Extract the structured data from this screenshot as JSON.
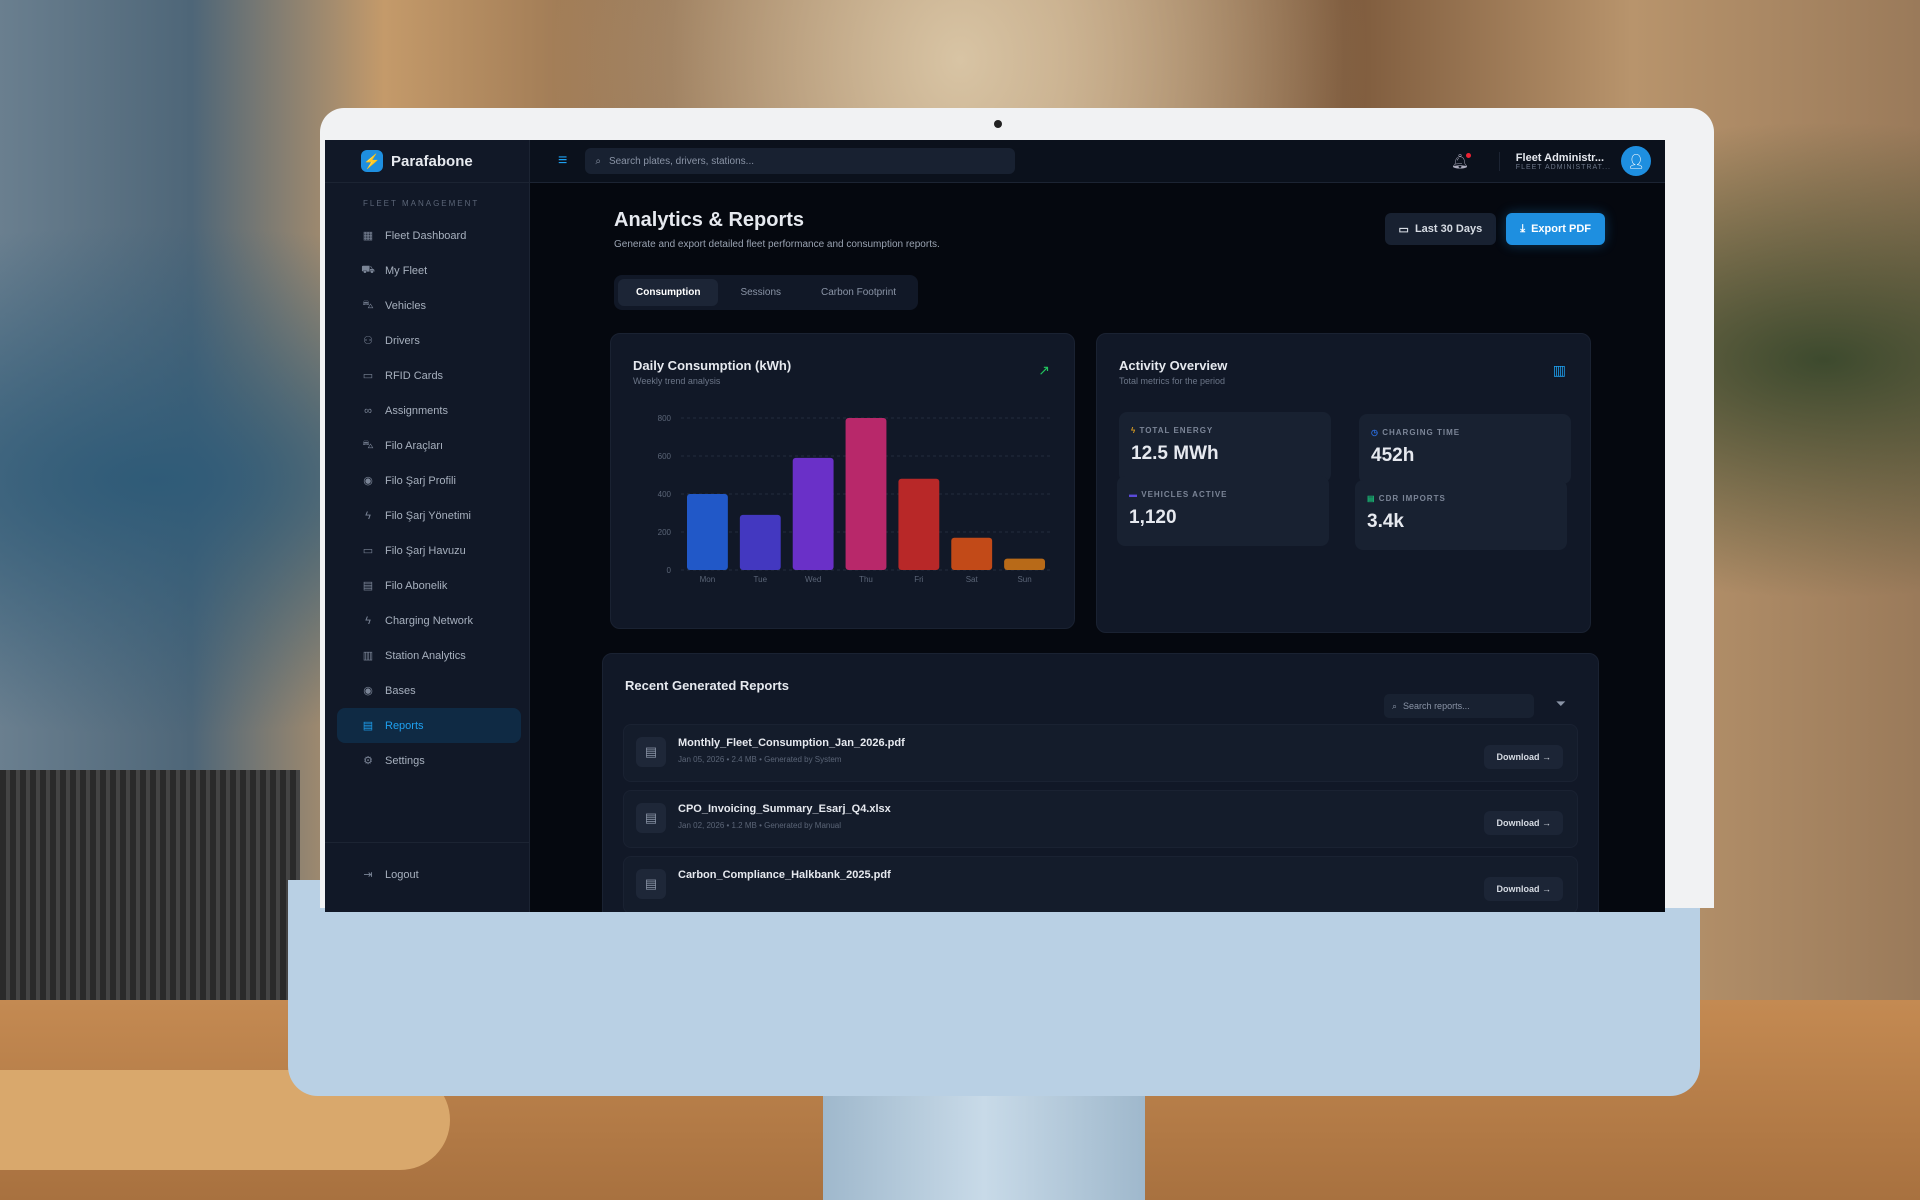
{
  "app": {
    "name": "Parafabone",
    "logo_icon": "bolt-icon"
  },
  "search": {
    "placeholder": "Search plates, drivers, stations..."
  },
  "user": {
    "name": "Fleet Administr...",
    "role": "FLEET ADMINISTRAT..."
  },
  "sidebar": {
    "section": "FLEET MANAGEMENT",
    "items": [
      {
        "label": "Fleet Dashboard",
        "icon": "grid-icon"
      },
      {
        "label": "My Fleet",
        "icon": "truck-icon"
      },
      {
        "label": "Vehicles",
        "icon": "car-icon"
      },
      {
        "label": "Drivers",
        "icon": "users-icon"
      },
      {
        "label": "RFID Cards",
        "icon": "card-icon"
      },
      {
        "label": "Assignments",
        "icon": "link-icon"
      },
      {
        "label": "Filo Araçları",
        "icon": "car-icon"
      },
      {
        "label": "Filo Şarj Profili",
        "icon": "pin-icon"
      },
      {
        "label": "Filo Şarj Yönetimi",
        "icon": "bolt-icon"
      },
      {
        "label": "Filo Şarj Havuzu",
        "icon": "battery-icon"
      },
      {
        "label": "Filo Abonelik",
        "icon": "file-icon"
      },
      {
        "label": "Charging Network",
        "icon": "bolt-icon"
      },
      {
        "label": "Station Analytics",
        "icon": "bar-chart-icon"
      },
      {
        "label": "Bases",
        "icon": "pin-icon"
      },
      {
        "label": "Reports",
        "icon": "file-icon",
        "active": true
      },
      {
        "label": "Settings",
        "icon": "gear-icon"
      }
    ],
    "logout": "Logout"
  },
  "page": {
    "title": "Analytics & Reports",
    "subtitle": "Generate and export detailed fleet performance and consumption reports.",
    "range_button": "Last 30 Days",
    "export_button": "Export PDF",
    "tabs": [
      "Consumption",
      "Sessions",
      "Carbon Footprint"
    ],
    "active_tab": "Consumption"
  },
  "chart_data": {
    "type": "bar",
    "title": "Daily Consumption (kWh)",
    "subtitle": "Weekly trend analysis",
    "categories": [
      "Mon",
      "Tue",
      "Wed",
      "Thu",
      "Fri",
      "Sat",
      "Sun"
    ],
    "values": [
      400,
      290,
      590,
      800,
      480,
      170,
      60
    ],
    "ylim": [
      0,
      800
    ],
    "yticks": [
      0,
      200,
      400,
      600,
      800
    ],
    "grid": true,
    "colors": [
      "#2158c8",
      "#4338c0",
      "#6a30c8",
      "#b8286a",
      "#b82828",
      "#c24a18",
      "#b86a18"
    ]
  },
  "activity": {
    "title": "Activity Overview",
    "subtitle": "Total metrics for the period",
    "stats": [
      {
        "label": "TOTAL ENERGY",
        "value": "12.5 MWh",
        "icon": "bolt-icon",
        "color": "#e0a020"
      },
      {
        "label": "CHARGING TIME",
        "value": "452h",
        "icon": "clock-icon",
        "color": "#2a6ad8"
      },
      {
        "label": "VEHICLES ACTIVE",
        "value": "1,120",
        "icon": "car-icon",
        "color": "#5a4ad8"
      },
      {
        "label": "CDR IMPORTS",
        "value": "3.4k",
        "icon": "file-icon",
        "color": "#18b070"
      }
    ]
  },
  "reports": {
    "title": "Recent Generated Reports",
    "search_placeholder": "Search reports...",
    "download_label": "Download",
    "items": [
      {
        "name": "Monthly_Fleet_Consumption_Jan_2026.pdf",
        "meta": "Jan 05, 2026 • 2.4 MB • Generated by System"
      },
      {
        "name": "CPO_Invoicing_Summary_Esarj_Q4.xlsx",
        "meta": "Jan 02, 2026 • 1.2 MB • Generated by Manual"
      },
      {
        "name": "Carbon_Compliance_Halkbank_2025.pdf",
        "meta": ""
      }
    ]
  }
}
